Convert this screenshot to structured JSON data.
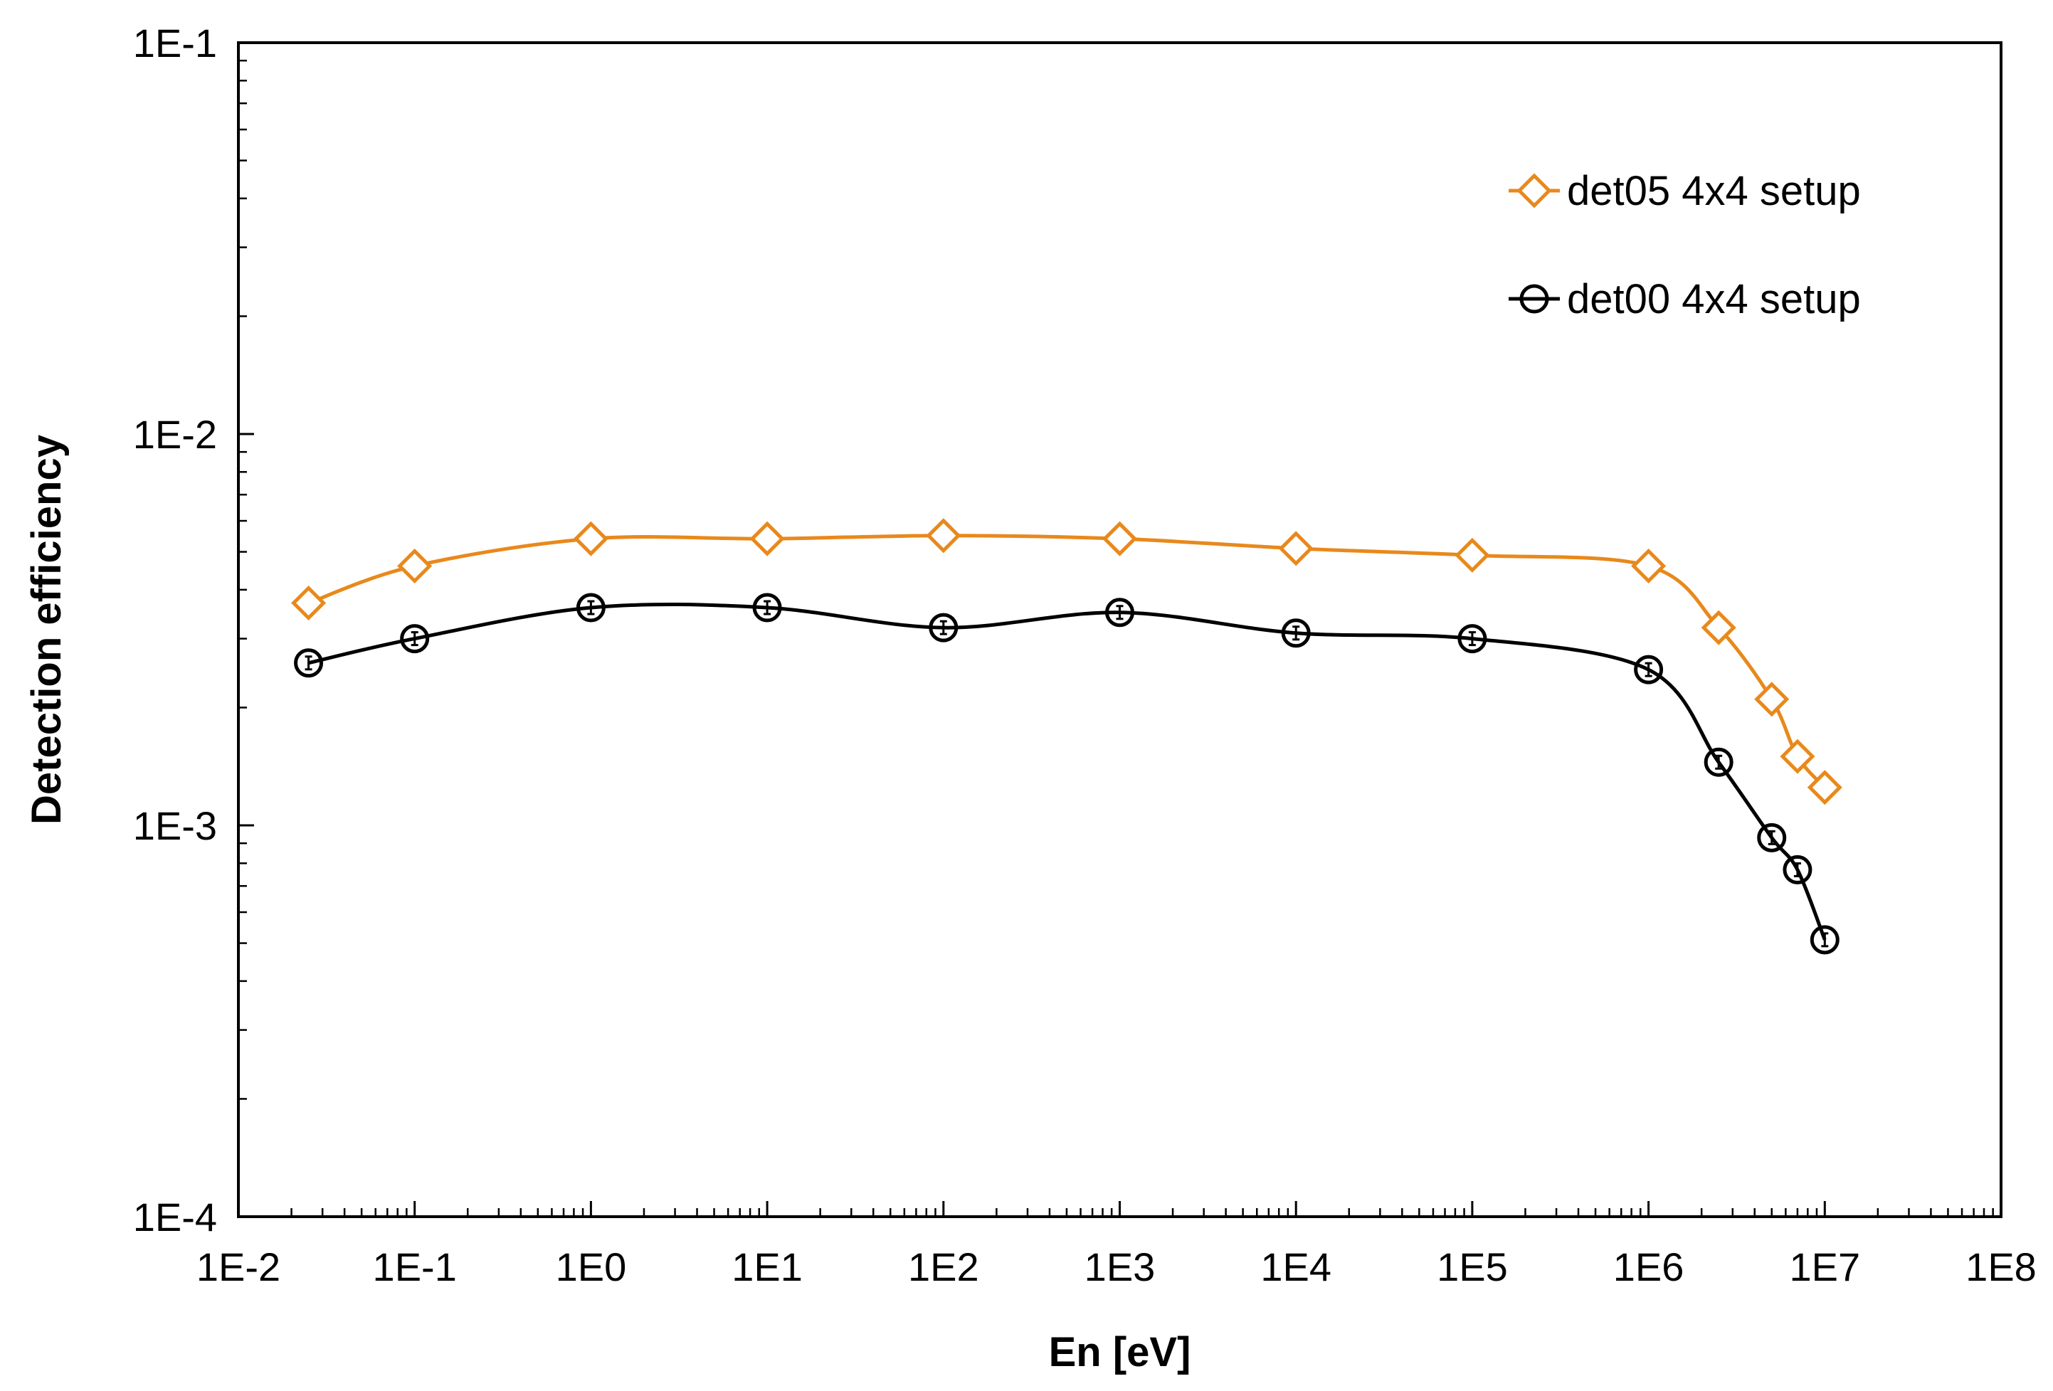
{
  "chart_data": {
    "type": "line",
    "title": "",
    "xlabel": "En [eV]",
    "ylabel": "Detection efficiency",
    "x_scale": "log",
    "y_scale": "log",
    "xlim": [
      0.01,
      100000000
    ],
    "ylim": [
      0.0001,
      0.1
    ],
    "x_tick_labels": [
      "1E-2",
      "1E-1",
      "1E0",
      "1E1",
      "1E2",
      "1E3",
      "1E4",
      "1E5",
      "1E6",
      "1E7",
      "1E8"
    ],
    "y_tick_labels": [
      "1E-4",
      "1E-3",
      "1E-2",
      "1E-1"
    ],
    "grid": false,
    "legend_position": "top-right",
    "series": [
      {
        "name": "det05 4x4 setup",
        "color": "#e8891c",
        "marker": "diamond",
        "x": [
          0.025,
          0.1,
          1,
          10,
          100,
          1000,
          10000,
          100000,
          1000000,
          2500000,
          5000000,
          7000000,
          10000000
        ],
        "y": [
          0.0037,
          0.0046,
          0.0054,
          0.0054,
          0.0055,
          0.0054,
          0.0051,
          0.0049,
          0.0046,
          0.0032,
          0.0021,
          0.0015,
          0.00125
        ]
      },
      {
        "name": "det00 4x4 setup",
        "color": "#000000",
        "marker": "circle",
        "x": [
          0.025,
          0.1,
          1,
          10,
          100,
          1000,
          10000,
          100000,
          1000000,
          2500000,
          5000000,
          7000000,
          10000000
        ],
        "y": [
          0.0026,
          0.003,
          0.0036,
          0.0036,
          0.0032,
          0.0035,
          0.0031,
          0.003,
          0.0025,
          0.00145,
          0.00093,
          0.00077,
          0.00051
        ]
      }
    ]
  }
}
